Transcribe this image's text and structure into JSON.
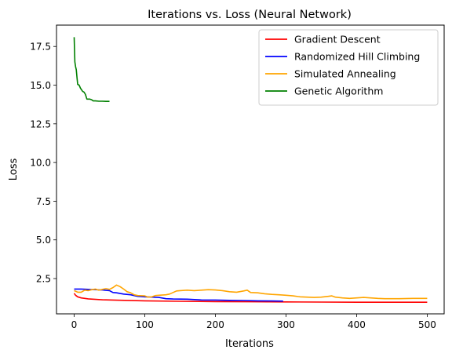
{
  "chart_data": {
    "type": "line",
    "title": "Iterations vs. Loss (Neural Network)",
    "xlabel": "Iterations",
    "ylabel": "Loss",
    "xlim": [
      -24.95,
      523.95
    ],
    "ylim": [
      0.22,
      18.88
    ],
    "x_ticks": [
      0,
      100,
      200,
      300,
      400,
      500
    ],
    "y_ticks": [
      2.5,
      5.0,
      7.5,
      10.0,
      12.5,
      15.0,
      17.5
    ],
    "x_tick_labels": [
      "0",
      "100",
      "200",
      "300",
      "400",
      "500"
    ],
    "y_tick_labels": [
      "2.5",
      "5.0",
      "7.5",
      "10.0",
      "12.5",
      "15.0",
      "17.5"
    ],
    "grid": false,
    "legend_position": "upper right",
    "series": [
      {
        "name": "Gradient Descent",
        "color": "#ff0000",
        "points": [
          [
            0,
            1.55
          ],
          [
            2,
            1.42
          ],
          [
            5,
            1.32
          ],
          [
            10,
            1.25
          ],
          [
            20,
            1.19
          ],
          [
            40,
            1.13
          ],
          [
            60,
            1.1
          ],
          [
            100,
            1.06
          ],
          [
            150,
            1.03
          ],
          [
            200,
            1.01
          ],
          [
            250,
            1.0
          ],
          [
            300,
            0.99
          ],
          [
            350,
            0.98
          ],
          [
            400,
            0.97
          ],
          [
            450,
            0.97
          ],
          [
            500,
            0.97
          ]
        ]
      },
      {
        "name": "Randomized Hill Climbing",
        "color": "#0000ff",
        "points": [
          [
            0,
            1.82
          ],
          [
            10,
            1.82
          ],
          [
            20,
            1.8
          ],
          [
            40,
            1.76
          ],
          [
            50,
            1.72
          ],
          [
            55,
            1.6
          ],
          [
            60,
            1.58
          ],
          [
            70,
            1.5
          ],
          [
            80,
            1.45
          ],
          [
            90,
            1.35
          ],
          [
            100,
            1.32
          ],
          [
            110,
            1.3
          ],
          [
            120,
            1.28
          ],
          [
            130,
            1.2
          ],
          [
            140,
            1.18
          ],
          [
            160,
            1.17
          ],
          [
            180,
            1.12
          ],
          [
            200,
            1.11
          ],
          [
            220,
            1.09
          ],
          [
            240,
            1.08
          ],
          [
            260,
            1.06
          ],
          [
            280,
            1.05
          ],
          [
            296,
            1.04
          ]
        ]
      },
      {
        "name": "Simulated Annealing",
        "color": "#ffa500",
        "points": [
          [
            0,
            1.72
          ],
          [
            5,
            1.62
          ],
          [
            10,
            1.62
          ],
          [
            15,
            1.75
          ],
          [
            20,
            1.72
          ],
          [
            25,
            1.78
          ],
          [
            30,
            1.82
          ],
          [
            35,
            1.75
          ],
          [
            40,
            1.8
          ],
          [
            45,
            1.85
          ],
          [
            50,
            1.8
          ],
          [
            55,
            1.92
          ],
          [
            60,
            2.08
          ],
          [
            65,
            1.98
          ],
          [
            70,
            1.82
          ],
          [
            75,
            1.65
          ],
          [
            80,
            1.58
          ],
          [
            85,
            1.45
          ],
          [
            90,
            1.4
          ],
          [
            100,
            1.38
          ],
          [
            105,
            1.3
          ],
          [
            110,
            1.32
          ],
          [
            115,
            1.4
          ],
          [
            120,
            1.42
          ],
          [
            130,
            1.45
          ],
          [
            135,
            1.5
          ],
          [
            140,
            1.6
          ],
          [
            145,
            1.7
          ],
          [
            150,
            1.72
          ],
          [
            160,
            1.75
          ],
          [
            170,
            1.72
          ],
          [
            180,
            1.75
          ],
          [
            190,
            1.78
          ],
          [
            200,
            1.76
          ],
          [
            210,
            1.72
          ],
          [
            220,
            1.65
          ],
          [
            230,
            1.62
          ],
          [
            240,
            1.7
          ],
          [
            245,
            1.75
          ],
          [
            250,
            1.6
          ],
          [
            260,
            1.58
          ],
          [
            270,
            1.52
          ],
          [
            280,
            1.48
          ],
          [
            290,
            1.45
          ],
          [
            300,
            1.42
          ],
          [
            310,
            1.38
          ],
          [
            320,
            1.32
          ],
          [
            330,
            1.3
          ],
          [
            340,
            1.28
          ],
          [
            350,
            1.3
          ],
          [
            360,
            1.35
          ],
          [
            365,
            1.38
          ],
          [
            370,
            1.3
          ],
          [
            380,
            1.25
          ],
          [
            390,
            1.22
          ],
          [
            400,
            1.25
          ],
          [
            410,
            1.28
          ],
          [
            420,
            1.25
          ],
          [
            430,
            1.22
          ],
          [
            440,
            1.2
          ],
          [
            460,
            1.2
          ],
          [
            480,
            1.22
          ],
          [
            500,
            1.22
          ]
        ]
      },
      {
        "name": "Genetic Algorithm",
        "color": "#008000",
        "points": [
          [
            0,
            18.1
          ],
          [
            1,
            16.5
          ],
          [
            2,
            16.2
          ],
          [
            3,
            16.0
          ],
          [
            4,
            15.5
          ],
          [
            5,
            15.05
          ],
          [
            7,
            15.0
          ],
          [
            9,
            14.8
          ],
          [
            12,
            14.6
          ],
          [
            14,
            14.55
          ],
          [
            16,
            14.4
          ],
          [
            18,
            14.1
          ],
          [
            20,
            14.1
          ],
          [
            22,
            14.1
          ],
          [
            25,
            14.05
          ],
          [
            27,
            13.98
          ],
          [
            30,
            13.98
          ],
          [
            35,
            13.96
          ],
          [
            40,
            13.96
          ],
          [
            45,
            13.95
          ],
          [
            50,
            13.95
          ]
        ]
      }
    ]
  }
}
